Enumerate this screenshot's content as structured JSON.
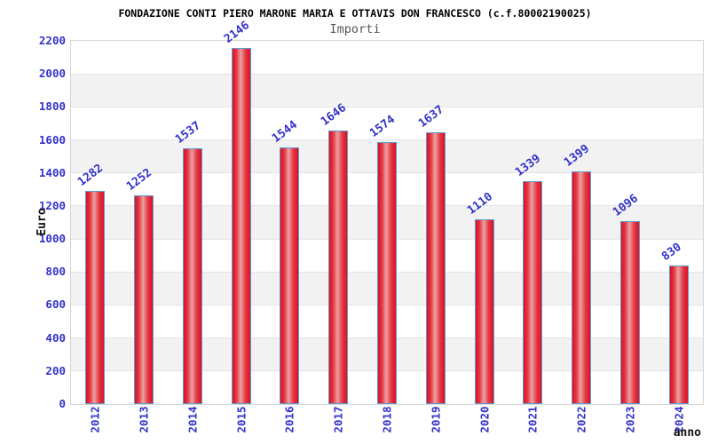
{
  "chart_data": {
    "type": "bar",
    "title": "FONDAZIONE CONTI PIERO MARONE MARIA E OTTAVIS DON FRANCESCO (c.f.80002190025)",
    "subtitle": "Importi",
    "xlabel": "anno",
    "ylabel": "Euro",
    "categories": [
      "2012",
      "2013",
      "2014",
      "2015",
      "2016",
      "2017",
      "2018",
      "2019",
      "2020",
      "2021",
      "2022",
      "2023",
      "2024"
    ],
    "values": [
      1282,
      1252,
      1537,
      2146,
      1544,
      1646,
      1574,
      1637,
      1110,
      1339,
      1399,
      1096,
      830
    ],
    "ylim": [
      0,
      2200
    ],
    "ytick_step": 200,
    "yticks": [
      0,
      200,
      400,
      600,
      800,
      1000,
      1200,
      1400,
      1600,
      1800,
      2000,
      2200
    ],
    "grid": true,
    "legend_position": "none",
    "bands": "alternating horizontal stripes between gridlines",
    "colors": {
      "bar_edge": "#e01020",
      "bar_highlight": "#eda1a1",
      "bar_border": "#5b9bd5",
      "label_blue": "#3232c8",
      "band_gray": "#f2f2f3",
      "grid_line": "#e4e4e6",
      "plot_border": "#d4d4d4",
      "title_color": "#000000",
      "subtitle_color": "#555555",
      "axis_title_color": "#111111",
      "background": "#ffffff"
    }
  }
}
